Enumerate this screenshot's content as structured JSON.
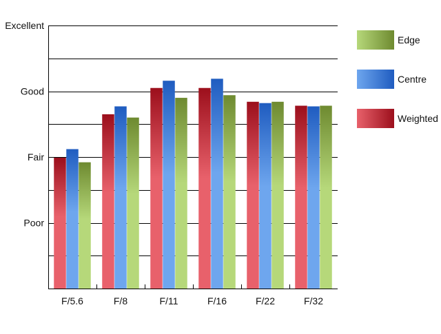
{
  "chart_data": {
    "type": "bar",
    "categories": [
      "F/5.6",
      "F/8",
      "F/11",
      "F/16",
      "F/22",
      "F/32"
    ],
    "series": [
      {
        "name": "Weighted",
        "values": [
          1.99,
          2.65,
          3.05,
          3.05,
          2.84,
          2.78
        ]
      },
      {
        "name": "Centre",
        "values": [
          2.12,
          2.77,
          3.16,
          3.19,
          2.82,
          2.77
        ]
      },
      {
        "name": "Edge",
        "values": [
          1.92,
          2.6,
          2.9,
          2.94,
          2.84,
          2.78
        ]
      }
    ],
    "y_tick_labels": [
      "Poor",
      "Fair",
      "Good",
      "Excellent"
    ],
    "y_tick_values": [
      1,
      2,
      3,
      4
    ],
    "ylim": [
      0,
      4
    ],
    "grid": true,
    "legend_position": "right",
    "legend_order": [
      "Edge",
      "Centre",
      "Weighted"
    ],
    "colors": {
      "Weighted": {
        "light": "#e8616b",
        "dark": "#9c0f1c"
      },
      "Centre": {
        "light": "#6ea6ee",
        "dark": "#1f5cc0"
      },
      "Edge": {
        "light": "#b6d87a",
        "dark": "#6e8a30"
      },
      "grid": "#000000",
      "axis": "#000000"
    },
    "title": "",
    "xlabel": "",
    "ylabel": ""
  }
}
